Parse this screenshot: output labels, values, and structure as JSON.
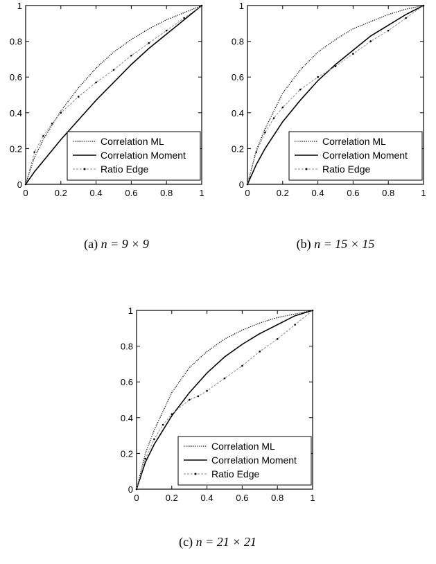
{
  "chart_data": [
    {
      "type": "line",
      "caption_prefix": "(a)",
      "caption_math": "n = 9 × 9",
      "xlim": [
        0,
        1
      ],
      "ylim": [
        0,
        1
      ],
      "xticks": [
        "0",
        "0.2",
        "0.4",
        "0.6",
        "0.8",
        "1"
      ],
      "yticks": [
        "0",
        "0.2",
        "0.4",
        "0.6",
        "0.8",
        "1"
      ],
      "legend_position": "bottom-right",
      "series": [
        {
          "name": "Correlation ML",
          "style": "dotted",
          "x": [
            0,
            0.05,
            0.1,
            0.2,
            0.3,
            0.4,
            0.5,
            0.6,
            0.7,
            0.8,
            0.9,
            1
          ],
          "y": [
            0,
            0.15,
            0.25,
            0.41,
            0.54,
            0.65,
            0.74,
            0.81,
            0.87,
            0.92,
            0.96,
            1
          ]
        },
        {
          "name": "Correlation Moment",
          "style": "solid",
          "x": [
            0,
            0.05,
            0.1,
            0.2,
            0.3,
            0.4,
            0.5,
            0.6,
            0.7,
            0.8,
            0.9,
            1
          ],
          "y": [
            0,
            0.07,
            0.13,
            0.25,
            0.36,
            0.47,
            0.57,
            0.67,
            0.76,
            0.84,
            0.92,
            1
          ]
        },
        {
          "name": "Ratio Edge",
          "style": "dash-dot-marker",
          "x": [
            0,
            0.05,
            0.1,
            0.15,
            0.2,
            0.3,
            0.4,
            0.5,
            0.6,
            0.7,
            0.8,
            0.9,
            1
          ],
          "y": [
            0,
            0.18,
            0.27,
            0.34,
            0.4,
            0.49,
            0.57,
            0.64,
            0.72,
            0.79,
            0.86,
            0.93,
            1
          ]
        }
      ]
    },
    {
      "type": "line",
      "caption_prefix": "(b)",
      "caption_math": "n = 15 × 15",
      "xlim": [
        0,
        1
      ],
      "ylim": [
        0,
        1
      ],
      "xticks": [
        "0",
        "0.2",
        "0.4",
        "0.6",
        "0.8",
        "1"
      ],
      "yticks": [
        "0",
        "0.2",
        "0.4",
        "0.6",
        "0.8",
        "1"
      ],
      "legend_position": "bottom-right",
      "series": [
        {
          "name": "Correlation ML",
          "style": "dotted",
          "x": [
            0,
            0.05,
            0.1,
            0.2,
            0.3,
            0.4,
            0.5,
            0.6,
            0.7,
            0.8,
            0.9,
            1
          ],
          "y": [
            0,
            0.19,
            0.31,
            0.51,
            0.64,
            0.74,
            0.81,
            0.87,
            0.91,
            0.95,
            0.98,
            1
          ]
        },
        {
          "name": "Correlation Moment",
          "style": "solid",
          "x": [
            0,
            0.05,
            0.1,
            0.2,
            0.3,
            0.4,
            0.5,
            0.6,
            0.7,
            0.8,
            0.9,
            1
          ],
          "y": [
            0,
            0.11,
            0.2,
            0.35,
            0.47,
            0.58,
            0.67,
            0.75,
            0.83,
            0.89,
            0.95,
            1
          ]
        },
        {
          "name": "Ratio Edge",
          "style": "dash-dot-marker",
          "x": [
            0,
            0.05,
            0.1,
            0.15,
            0.2,
            0.3,
            0.4,
            0.5,
            0.6,
            0.7,
            0.8,
            0.9,
            1
          ],
          "y": [
            0,
            0.18,
            0.29,
            0.37,
            0.43,
            0.53,
            0.6,
            0.66,
            0.73,
            0.8,
            0.86,
            0.93,
            1
          ]
        }
      ]
    },
    {
      "type": "line",
      "caption_prefix": "(c)",
      "caption_math": "n = 21 × 21",
      "xlim": [
        0,
        1
      ],
      "ylim": [
        0,
        1
      ],
      "xticks": [
        "0",
        "0.2",
        "0.4",
        "0.6",
        "0.8",
        "1"
      ],
      "yticks": [
        "0",
        "0.2",
        "0.4",
        "0.6",
        "0.8",
        "1"
      ],
      "legend_position": "bottom-right",
      "series": [
        {
          "name": "Correlation ML",
          "style": "dotted",
          "x": [
            0,
            0.05,
            0.1,
            0.2,
            0.3,
            0.4,
            0.5,
            0.6,
            0.7,
            0.8,
            0.9,
            1
          ],
          "y": [
            0,
            0.2,
            0.33,
            0.54,
            0.68,
            0.77,
            0.84,
            0.89,
            0.93,
            0.96,
            0.98,
            1
          ]
        },
        {
          "name": "Correlation Moment",
          "style": "solid",
          "x": [
            0,
            0.05,
            0.1,
            0.2,
            0.3,
            0.4,
            0.5,
            0.6,
            0.7,
            0.8,
            0.9,
            1
          ],
          "y": [
            0,
            0.15,
            0.25,
            0.41,
            0.54,
            0.65,
            0.74,
            0.81,
            0.87,
            0.92,
            0.97,
            1
          ]
        },
        {
          "name": "Ratio Edge",
          "style": "dash-dot-marker",
          "x": [
            0,
            0.05,
            0.1,
            0.15,
            0.2,
            0.3,
            0.35,
            0.4,
            0.5,
            0.6,
            0.7,
            0.8,
            0.9,
            1
          ],
          "y": [
            0,
            0.17,
            0.28,
            0.36,
            0.42,
            0.5,
            0.52,
            0.55,
            0.62,
            0.69,
            0.77,
            0.84,
            0.92,
            1
          ]
        }
      ]
    }
  ]
}
